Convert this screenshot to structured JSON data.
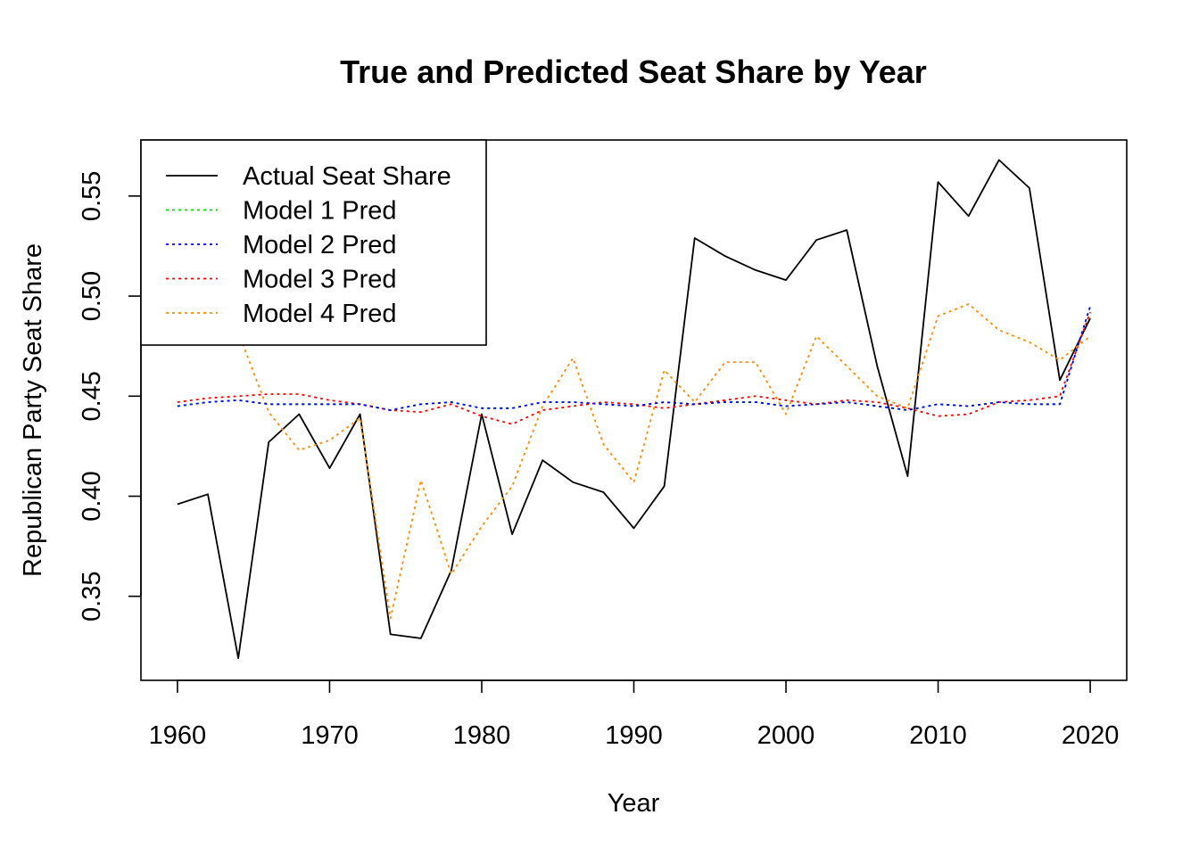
{
  "chart_data": {
    "type": "line",
    "title": "True and Predicted Seat Share by Year",
    "xlabel": "Year",
    "ylabel": "Republican Party Seat Share",
    "xlim": [
      1957.6,
      2022.4
    ],
    "ylim": [
      0.308,
      0.578
    ],
    "x_ticks": [
      1960,
      1970,
      1980,
      1990,
      2000,
      2010,
      2020
    ],
    "y_ticks": [
      0.35,
      0.4,
      0.45,
      0.5,
      0.55
    ],
    "y_tick_labels": [
      "0.35",
      "0.40",
      "0.45",
      "0.50",
      "0.55"
    ],
    "legend_position": "top-left",
    "grid": false,
    "x": [
      1960,
      1962,
      1964,
      1966,
      1968,
      1970,
      1972,
      1974,
      1976,
      1978,
      1980,
      1982,
      1984,
      1986,
      1988,
      1990,
      1992,
      1994,
      1996,
      1998,
      2000,
      2002,
      2004,
      2006,
      2008,
      2010,
      2012,
      2014,
      2016,
      2018,
      2020
    ],
    "series": [
      {
        "name": "Actual Seat Share",
        "color": "#000000",
        "dash": "solid",
        "values": [
          0.396,
          0.401,
          0.319,
          0.427,
          0.441,
          0.414,
          0.441,
          0.331,
          0.329,
          0.363,
          0.441,
          0.381,
          0.418,
          0.407,
          0.402,
          0.384,
          0.405,
          0.529,
          0.52,
          0.513,
          0.508,
          0.528,
          0.533,
          0.465,
          0.41,
          0.557,
          0.54,
          0.568,
          0.554,
          0.458,
          0.489
        ]
      },
      {
        "name": "Model 1 Pred",
        "color": "#00e000",
        "dash": "dotted",
        "values": [
          0.445,
          0.447,
          0.448,
          0.446,
          0.446,
          0.446,
          0.446,
          0.443,
          0.446,
          0.447,
          0.444,
          0.444,
          0.447,
          0.447,
          0.446,
          0.445,
          0.447,
          0.446,
          0.447,
          0.447,
          0.445,
          0.446,
          0.447,
          0.445,
          0.443,
          0.446,
          0.445,
          0.447,
          0.446,
          0.446,
          0.495
        ]
      },
      {
        "name": "Model 2 Pred",
        "color": "#0000ff",
        "dash": "dotted",
        "values": [
          0.445,
          0.447,
          0.448,
          0.446,
          0.446,
          0.446,
          0.446,
          0.443,
          0.446,
          0.447,
          0.444,
          0.444,
          0.447,
          0.447,
          0.446,
          0.445,
          0.447,
          0.446,
          0.447,
          0.447,
          0.445,
          0.446,
          0.447,
          0.445,
          0.443,
          0.446,
          0.445,
          0.447,
          0.446,
          0.446,
          0.495
        ]
      },
      {
        "name": "Model 3 Pred",
        "color": "#ff0000",
        "dash": "dotted",
        "values": [
          0.447,
          0.449,
          0.45,
          0.451,
          0.451,
          0.448,
          0.446,
          0.443,
          0.442,
          0.446,
          0.44,
          0.436,
          0.443,
          0.445,
          0.447,
          0.446,
          0.444,
          0.446,
          0.448,
          0.45,
          0.448,
          0.446,
          0.448,
          0.447,
          0.444,
          0.44,
          0.441,
          0.447,
          0.448,
          0.45,
          0.492
        ]
      },
      {
        "name": "Model 4 Pred",
        "color": "#ff8c00",
        "dash": "dotted",
        "values": [
          null,
          null,
          0.482,
          0.442,
          0.423,
          0.428,
          0.439,
          0.339,
          0.408,
          0.361,
          0.385,
          0.405,
          0.445,
          0.469,
          0.426,
          0.407,
          0.463,
          0.447,
          0.467,
          0.467,
          0.441,
          0.48,
          0.465,
          0.45,
          0.444,
          0.49,
          0.496,
          0.483,
          0.477,
          0.468,
          0.48
        ]
      }
    ]
  }
}
